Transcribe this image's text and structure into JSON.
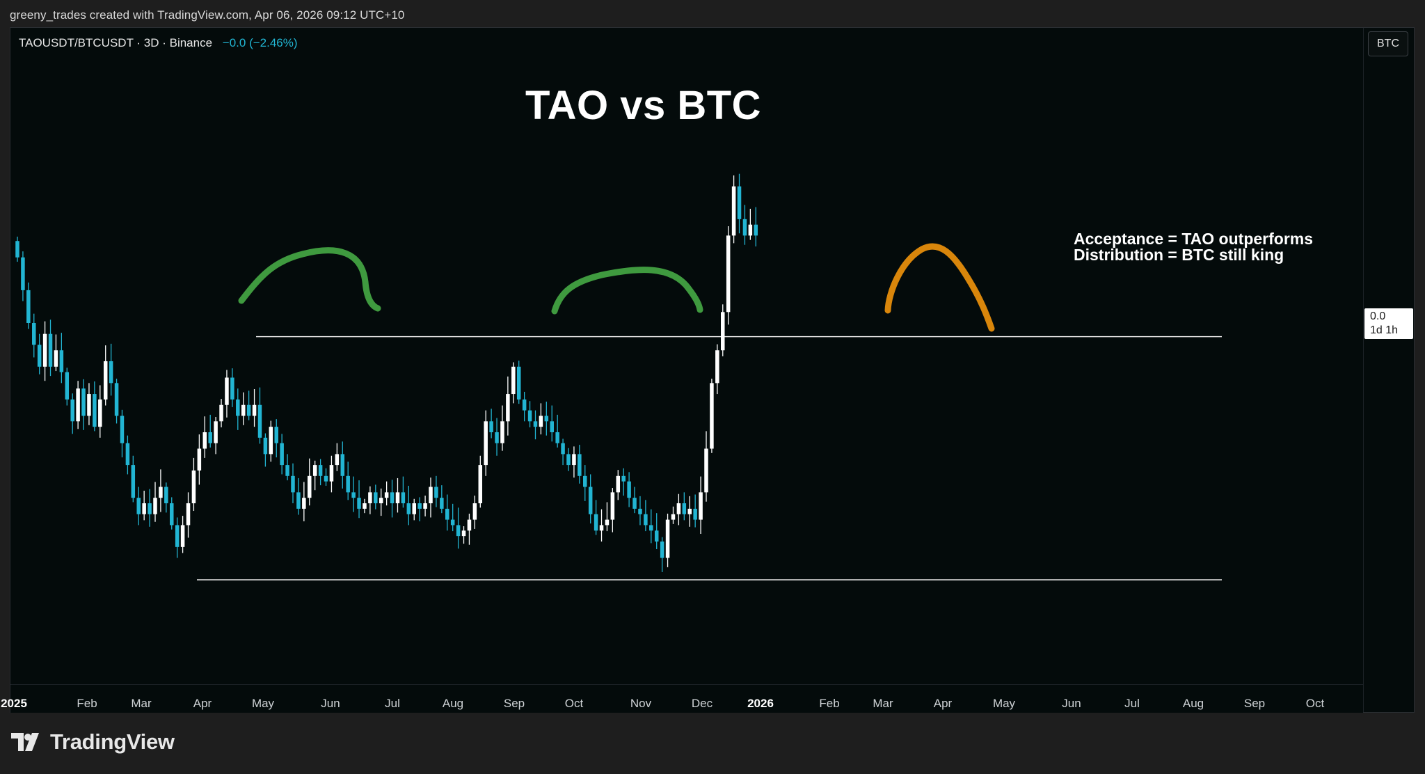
{
  "credit": "greeny_trades created with TradingView.com, Apr 06, 2026 09:12 UTC+10",
  "header": {
    "symbol": "TAOUSDT/BTCUSDT · 3D · Binance",
    "change": "−0.0 (−2.46%)",
    "currency_button": "BTC"
  },
  "brand": {
    "name": "TradingView",
    "icon": "tradingview-logo-icon"
  },
  "colors": {
    "background": "#040b0b",
    "up_candle": "#ffffff",
    "down_candle": "#22b5d3",
    "green_arc": "#3f9a3f",
    "orange_arc": "#d9860b",
    "level_line": "#e6e6e6"
  },
  "chart_data": {
    "type": "candlestick",
    "title": "TAO vs BTC",
    "annotation": [
      "Acceptance = TAO outperforms",
      "Distribution = BTC still king"
    ],
    "price_label": {
      "value": "0.0",
      "countdown": "1d 1h"
    },
    "x_ticks": [
      {
        "label": "2025",
        "year": true
      },
      {
        "label": "Feb"
      },
      {
        "label": "Mar"
      },
      {
        "label": "Apr"
      },
      {
        "label": "May"
      },
      {
        "label": "Jun"
      },
      {
        "label": "Jul"
      },
      {
        "label": "Aug"
      },
      {
        "label": "Sep"
      },
      {
        "label": "Oct"
      },
      {
        "label": "Nov"
      },
      {
        "label": "Dec"
      },
      {
        "label": "2026",
        "year": true
      },
      {
        "label": "Feb"
      },
      {
        "label": "Mar"
      },
      {
        "label": "Apr"
      },
      {
        "label": "May"
      },
      {
        "label": "Jun"
      },
      {
        "label": "Jul"
      },
      {
        "label": "Aug"
      },
      {
        "label": "Sep"
      },
      {
        "label": "Oct"
      }
    ],
    "y_range": [
      0.0,
      1.0
    ],
    "resistance_level": 0.575,
    "support_level": 0.13,
    "anchor": [
      0.75,
      0.62
    ],
    "changes": [
      -0.03,
      -0.06,
      -0.06,
      -0.04,
      -0.04,
      0.06,
      -0.06,
      0.03,
      -0.04,
      -0.05,
      -0.04,
      0.06,
      -0.05,
      0.04,
      -0.06,
      0.05,
      0.07,
      -0.04,
      -0.06,
      -0.05,
      -0.04,
      -0.06,
      -0.03,
      0.02,
      -0.02,
      0.03,
      0.02,
      -0.03,
      -0.04,
      -0.04,
      0.04,
      0.04,
      0.06,
      0.04,
      0.03,
      -0.02,
      0.04,
      0.03,
      0.05,
      -0.04,
      -0.03,
      0.02,
      -0.02,
      0.02,
      -0.06,
      -0.03,
      0.05,
      -0.03,
      -0.04,
      -0.02,
      -0.03,
      -0.03,
      0.02,
      0.04,
      0.02,
      -0.02,
      -0.01,
      0.03,
      0.02,
      -0.04,
      -0.03,
      -0.01,
      -0.02,
      0.01,
      0.02,
      -0.02,
      0.01,
      0.01,
      -0.02,
      0.02,
      -0.02,
      -0.02,
      0.02,
      -0.01,
      0.01,
      0.03,
      -0.02,
      -0.02,
      -0.02,
      -0.01,
      -0.02,
      0.01,
      0.02,
      0.03,
      0.07,
      0.08,
      -0.02,
      -0.02,
      0.04,
      0.05,
      0.05,
      -0.06,
      -0.02,
      -0.02,
      -0.01,
      0.02,
      -0.01,
      -0.02,
      -0.02,
      -0.02,
      -0.02,
      0.02,
      -0.04,
      -0.02,
      -0.05,
      -0.03,
      0.01,
      0.01,
      0.05,
      0.03,
      -0.01,
      -0.03,
      -0.02,
      -0.01,
      -0.02,
      -0.01,
      -0.02,
      -0.03,
      0.07,
      0.01,
      0.02,
      -0.02,
      0.01,
      -0.02,
      0.05,
      0.08,
      0.12,
      0.06,
      0.07,
      0.14,
      0.09,
      -0.06,
      -0.03,
      0.02,
      -0.02
    ]
  }
}
